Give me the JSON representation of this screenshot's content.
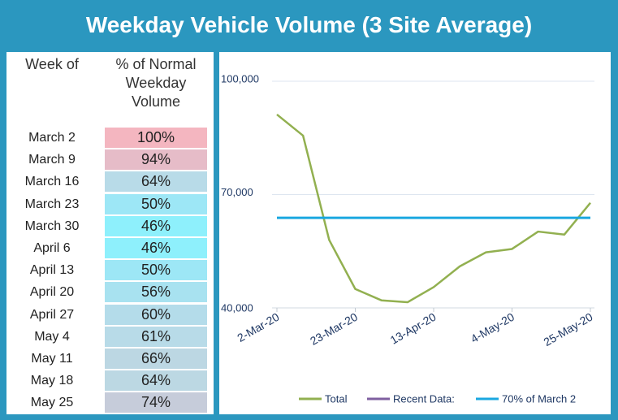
{
  "title": "Weekday Vehicle Volume (3 Site Average)",
  "table": {
    "headers": [
      "Week of",
      "% of Normal Weekday Volume"
    ],
    "rows": [
      [
        "March 2",
        "100%"
      ],
      [
        "March 9",
        "94%"
      ],
      [
        "March 16",
        "64%"
      ],
      [
        "March 23",
        "50%"
      ],
      [
        "March 30",
        "46%"
      ],
      [
        "April 6",
        "46%"
      ],
      [
        "April 13",
        "50%"
      ],
      [
        "April 20",
        "56%"
      ],
      [
        "April 27",
        "60%"
      ],
      [
        "May 4",
        "61%"
      ],
      [
        "May 11",
        "66%"
      ],
      [
        "May 18",
        "64%"
      ],
      [
        "May 25",
        "74%"
      ]
    ],
    "cell_colors": [
      "#f4b6c0",
      "#e6bcc8",
      "#b8dbe8",
      "#9de7f6",
      "#8ef0fc",
      "#8ef0fc",
      "#9de7f6",
      "#a8e2f0",
      "#b4dcea",
      "#b8dbe8",
      "#bcd7e3",
      "#bcd8e3",
      "#c6ccda"
    ]
  },
  "chart_data": {
    "type": "line",
    "categories": [
      "2-Mar-20",
      null,
      null,
      "23-Mar-20",
      null,
      null,
      "13-Apr-20",
      null,
      null,
      "4-May-20",
      null,
      null,
      "25-May-20"
    ],
    "series": [
      {
        "name": "Total",
        "color": "#92b050",
        "values": [
          91200,
          85600,
          58000,
          45000,
          42000,
          41500,
          45500,
          51000,
          54700,
          55600,
          60200,
          59400,
          67800
        ]
      },
      {
        "name": "Recent Data:",
        "color": "#7f5fa0",
        "values": [
          null,
          null,
          null,
          null,
          null,
          null,
          null,
          null,
          null,
          null,
          null,
          null,
          null
        ]
      },
      {
        "name": "70% of March 2",
        "color": "#1aa7e0",
        "values": [
          63840,
          63840,
          63840,
          63840,
          63840,
          63840,
          63840,
          63840,
          63840,
          63840,
          63840,
          63840,
          63840
        ]
      }
    ],
    "ylim": [
      40000,
      100000
    ],
    "yticks": [
      {
        "value": 40000,
        "label": "40,000"
      },
      {
        "value": 70000,
        "label": "70,000"
      },
      {
        "value": 100000,
        "label": "100,000"
      }
    ],
    "grid": true,
    "legend": "bottom"
  }
}
